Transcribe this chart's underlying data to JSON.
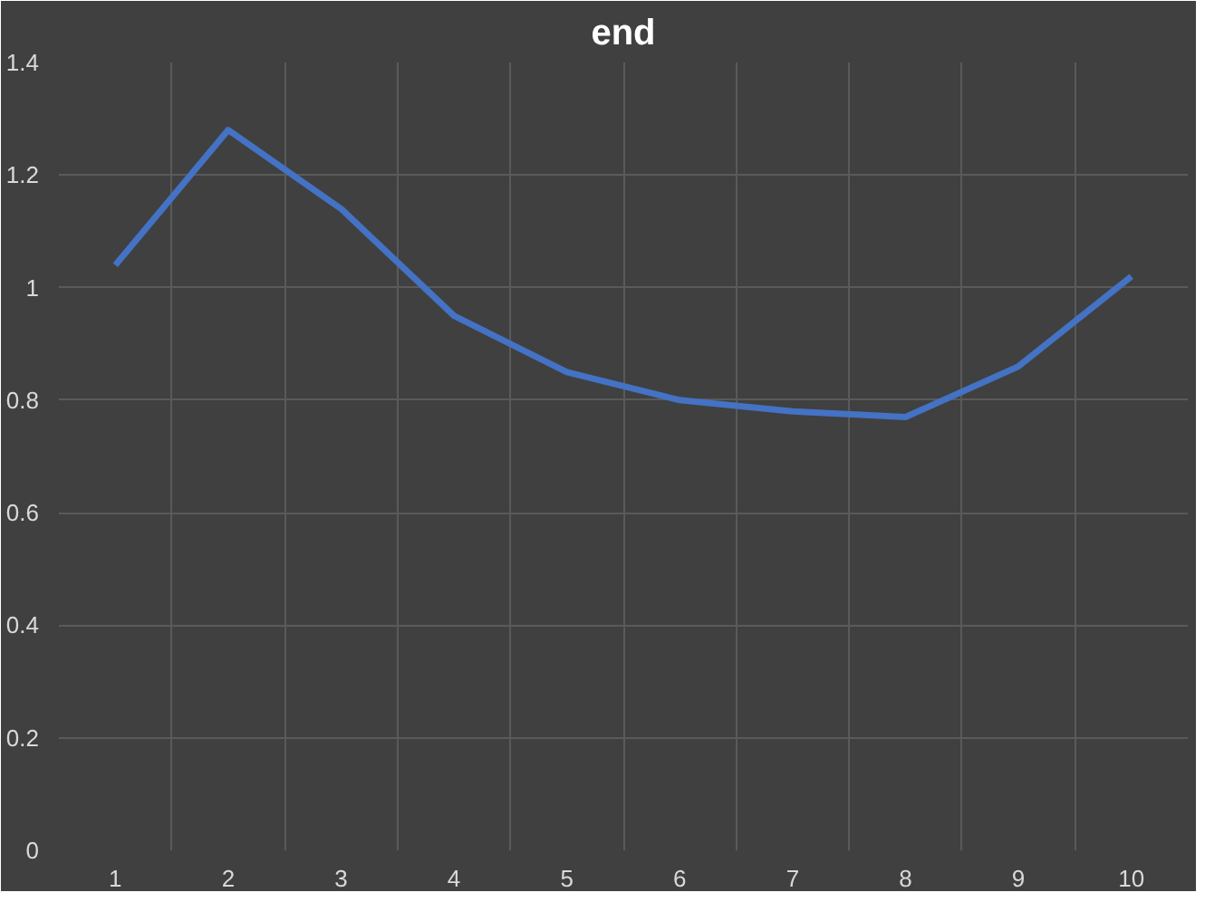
{
  "chart_data": {
    "type": "line",
    "title": "end",
    "categories": [
      "1",
      "2",
      "3",
      "4",
      "5",
      "6",
      "7",
      "8",
      "9",
      "10"
    ],
    "series": [
      {
        "color": "#4472c4",
        "values": [
          1.04,
          1.28,
          1.14,
          0.95,
          0.85,
          0.8,
          0.78,
          0.77,
          0.86,
          1.02
        ]
      }
    ],
    "ylim": [
      0,
      1.4
    ],
    "yticks": [
      0,
      {
        "value": 0.2,
        "label": "0.2"
      },
      {
        "value": 0.4,
        "label": "0.4"
      },
      {
        "value": 0.6,
        "label": "0.6"
      },
      {
        "value": 0.8,
        "label": "0.8"
      },
      1,
      {
        "value": 1.2,
        "label": "1.2"
      },
      {
        "value": 1.4,
        "label": "1.4"
      }
    ],
    "grid": true,
    "marker": "none",
    "line_style": "solid"
  }
}
